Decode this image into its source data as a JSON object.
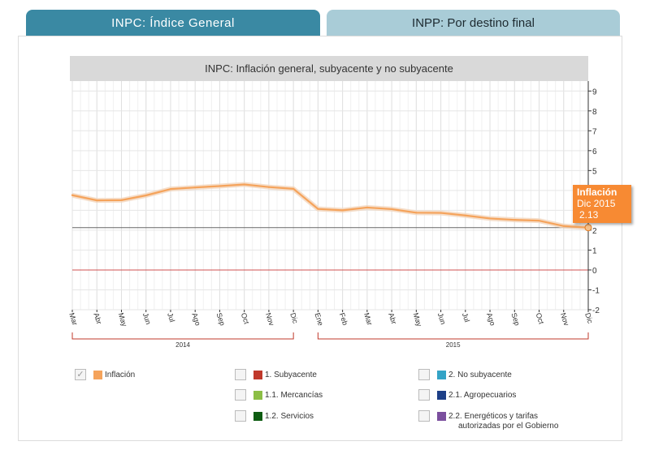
{
  "tabs": [
    {
      "label": "INPC: Índice General",
      "active": true
    },
    {
      "label": "INPP: Por destino final",
      "active": false
    }
  ],
  "chart_data": {
    "type": "line",
    "title": "INPC: Inflación general, subyacente y no subyacente",
    "categories": [
      "Mar",
      "Abr",
      "May",
      "Jun",
      "Jul",
      "Ago",
      "Sep",
      "Oct",
      "Nov",
      "Dic",
      "Ene",
      "Feb",
      "Mar",
      "Abr",
      "May",
      "Jun",
      "Jul",
      "Ago",
      "Sep",
      "Oct",
      "Nov",
      "Dic"
    ],
    "year_groups": [
      {
        "label": "2014",
        "start": 0,
        "end": 9
      },
      {
        "label": "2015",
        "start": 10,
        "end": 21
      }
    ],
    "series": [
      {
        "name": "Inflación",
        "color": "#f5a35b",
        "values": [
          3.76,
          3.5,
          3.51,
          3.75,
          4.07,
          4.15,
          4.22,
          4.3,
          4.17,
          4.08,
          3.07,
          3.0,
          3.14,
          3.06,
          2.88,
          2.87,
          2.74,
          2.59,
          2.52,
          2.48,
          2.21,
          2.13
        ]
      }
    ],
    "ylim": [
      -2,
      9.5
    ],
    "yticks": [
      -2,
      -1,
      0,
      1,
      2,
      3,
      4,
      5,
      6,
      7,
      8,
      9
    ],
    "reference_line": 2.13,
    "zero_line": 0,
    "tooltip": {
      "title": "Inflación",
      "date": "Dic 2015",
      "value": "2.13"
    }
  },
  "legend": [
    {
      "label": "Inflación",
      "color": "#f5a35b",
      "checked": true
    },
    {
      "label": "1. Subyacente",
      "color": "#c0392b",
      "checked": false
    },
    {
      "label": "1.1. Mercancías",
      "color": "#8cbe45",
      "checked": false
    },
    {
      "label": "1.2. Servicios",
      "color": "#0e5c12",
      "checked": false
    },
    {
      "label": "2. No subyacente",
      "color": "#34a3c6",
      "checked": false
    },
    {
      "label": "2.1. Agropecuarios",
      "color": "#1d3f87",
      "checked": false
    },
    {
      "label": "2.2. Energéticos y tarifas",
      "label2": "autorizadas por el Gobierno",
      "color": "#7b4f9e",
      "checked": false
    }
  ],
  "colors": {
    "accent": "#3a89a3",
    "tab_inactive": "#a9ccd7",
    "bracket": "#c0392b"
  }
}
